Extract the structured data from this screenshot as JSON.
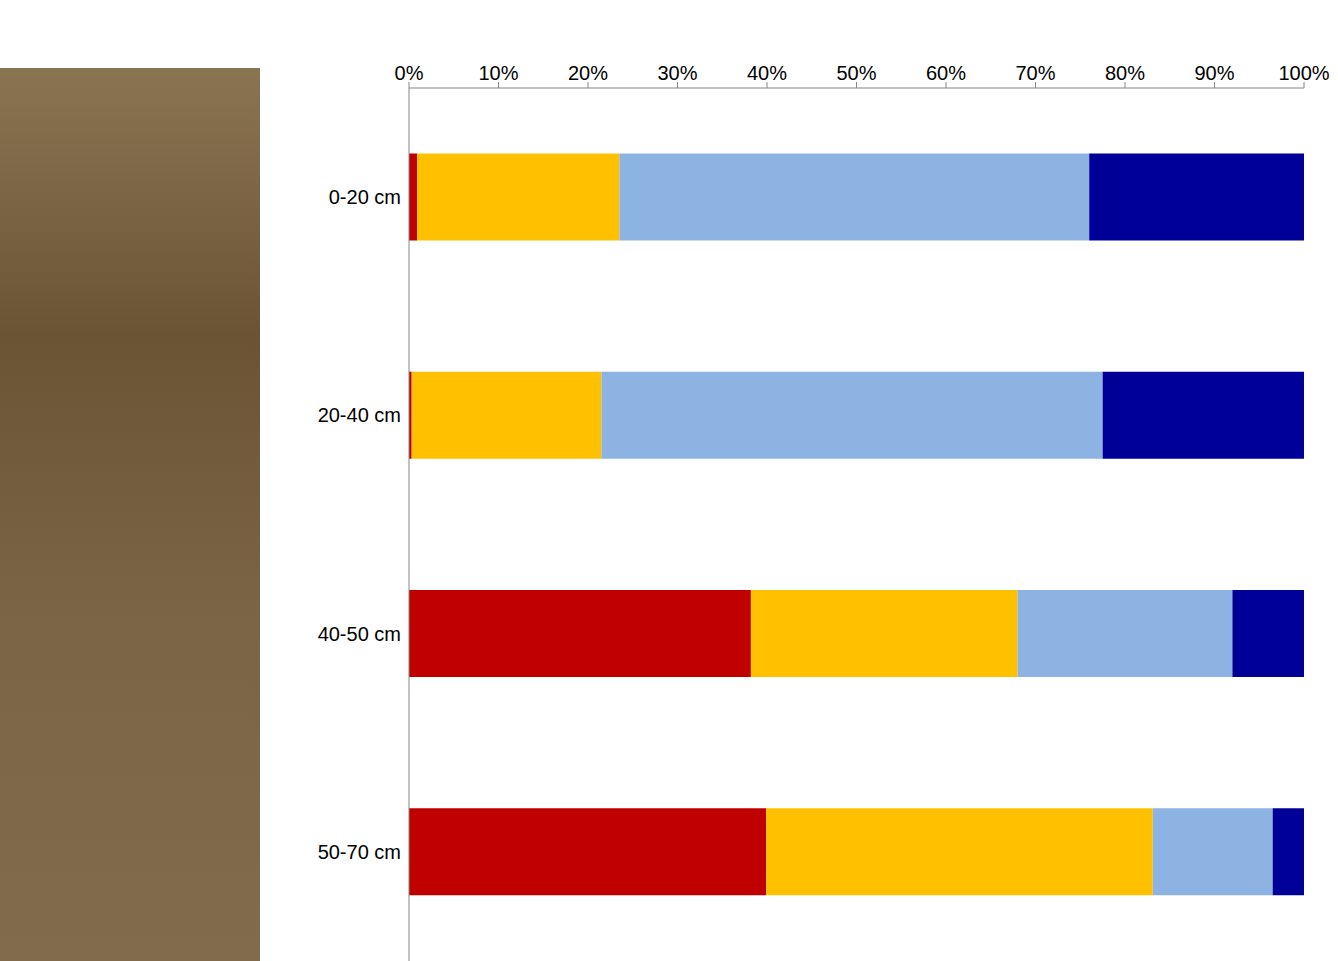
{
  "chart_data": {
    "type": "bar",
    "orientation": "horizontal",
    "stacked": true,
    "categories": [
      "0-20 cm",
      "20-40 cm",
      "40-50 cm",
      "50-70 cm"
    ],
    "series": [
      {
        "color": "#c00000",
        "values": [
          0.9,
          0.3,
          38.2,
          39.9
        ]
      },
      {
        "color": "#ffc000",
        "values": [
          22.6,
          21.2,
          29.8,
          43.2
        ]
      },
      {
        "color": "#8db3e2",
        "values": [
          52.5,
          56.0,
          24.0,
          13.4
        ]
      },
      {
        "color": "#000099",
        "values": [
          24.0,
          22.5,
          8.0,
          3.5
        ]
      }
    ],
    "xlim": [
      0,
      100
    ],
    "xticks": [
      {
        "value": 0,
        "label": "0%"
      },
      {
        "value": 10,
        "label": "10%"
      },
      {
        "value": 20,
        "label": "20%"
      },
      {
        "value": 30,
        "label": "30%"
      },
      {
        "value": 40,
        "label": "40%"
      },
      {
        "value": 50,
        "label": "50%"
      },
      {
        "value": 60,
        "label": "60%"
      },
      {
        "value": 70,
        "label": "70%"
      },
      {
        "value": 80,
        "label": "80%"
      },
      {
        "value": 90,
        "label": "90%"
      },
      {
        "value": 100,
        "label": "100%"
      }
    ],
    "grid": false
  }
}
